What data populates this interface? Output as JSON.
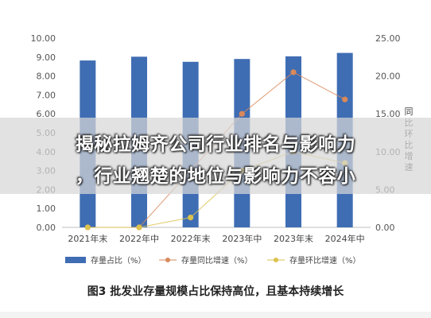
{
  "chart_data": {
    "type": "bar+line",
    "categories": [
      "2021年末",
      "2022年中",
      "2022年末",
      "2023年中",
      "2023年末",
      "2024年中"
    ],
    "y_left": {
      "ticks": [
        "0.00",
        "1.00",
        "2.00",
        "3.00",
        "4.00",
        "5.00",
        "6.00",
        "7.00",
        "8.00",
        "9.00",
        "10.00"
      ],
      "lim": [
        0,
        10
      ]
    },
    "y_right": {
      "ticks": [
        "0.00",
        "5.00",
        "10.00",
        "15.00",
        "20.00",
        "25.00"
      ],
      "lim": [
        0,
        25
      ],
      "label": "同比环比增速"
    },
    "series": [
      {
        "name": "存量占比（%）",
        "type": "bar",
        "axis": "left",
        "color": "#3f6db3",
        "values": [
          8.82,
          9.02,
          8.75,
          8.9,
          9.04,
          9.22
        ]
      },
      {
        "name": "存量同比增速（%）",
        "type": "line",
        "axis": "right",
        "color": "#d9895a",
        "values": [
          0.0,
          0.0,
          7.5,
          15.0,
          20.5,
          16.9
        ]
      },
      {
        "name": "存量环比增速（%）",
        "type": "line",
        "axis": "right",
        "color": "#dcc24e",
        "values": [
          0.0,
          0.0,
          1.3,
          7.5,
          10.0,
          8.5
        ]
      }
    ],
    "legend_position": "bottom",
    "grid": false
  },
  "overlay": {
    "line1": "揭秘拉姆齐公司行业排名与影响力",
    "line2": "，行业翘楚的地位与影响力不容小"
  },
  "caption": "图3  批发业存量规模占比保持高位，且基本持续增长"
}
